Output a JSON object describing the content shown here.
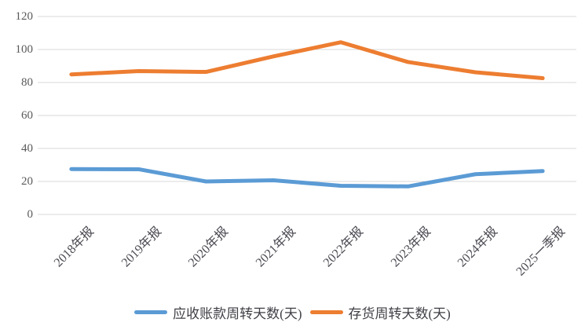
{
  "chart_data": {
    "type": "line",
    "title": "",
    "xlabel": "",
    "ylabel": "",
    "categories": [
      "2018年报",
      "2019年报",
      "2020年报",
      "2021年报",
      "2022年报",
      "2023年报",
      "2024年报",
      "2025一季报"
    ],
    "series": [
      {
        "name": "应收账款周转天数(天)",
        "color": "#5B9BD5",
        "values": [
          27.5,
          27.4,
          20.0,
          20.7,
          17.4,
          17.0,
          24.4,
          26.3
        ]
      },
      {
        "name": "存货周转天数(天)",
        "color": "#ED7D31",
        "values": [
          84.9,
          86.9,
          86.4,
          95.8,
          104.4,
          92.4,
          86.2,
          82.6
        ]
      }
    ],
    "ylim": [
      0,
      120
    ],
    "yticks": [
      0,
      20,
      40,
      60,
      80,
      100,
      120
    ],
    "grid": true,
    "legend_position": "bottom",
    "style": {
      "gridline_color": "#D9D9D9",
      "y_tick_label_color": "#595959",
      "x_tick_label_color": "#4a4a52",
      "legend_text_color": "#3f3f46",
      "background_color": "#FFFFFF"
    }
  }
}
